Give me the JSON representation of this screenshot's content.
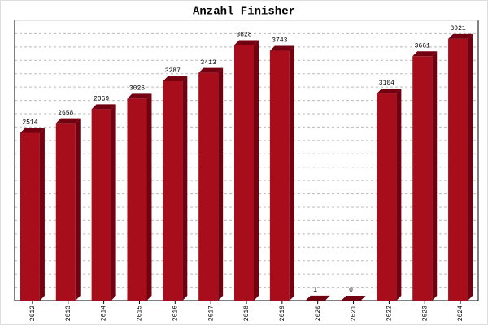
{
  "chart_data": {
    "type": "bar3d",
    "title": "Anzahl Finisher",
    "categories": [
      "2012",
      "2013",
      "2014",
      "2015",
      "2016",
      "2017",
      "2018",
      "2019",
      "2020",
      "2021",
      "2022",
      "2023",
      "2024"
    ],
    "values": [
      2514,
      2658,
      2869,
      3026,
      3287,
      3413,
      3828,
      3743,
      1,
      0,
      3104,
      3661,
      3921
    ],
    "color": "#a80d1b",
    "shade": "#720010",
    "ylim": [
      0,
      4200
    ],
    "yticks": [
      0,
      200,
      400,
      600,
      800,
      1000,
      1200,
      1400,
      1600,
      1800,
      2000,
      2200,
      2400,
      2600,
      2800,
      3000,
      3200,
      3400,
      3600,
      3800,
      4000,
      4200
    ],
    "grid": true
  }
}
